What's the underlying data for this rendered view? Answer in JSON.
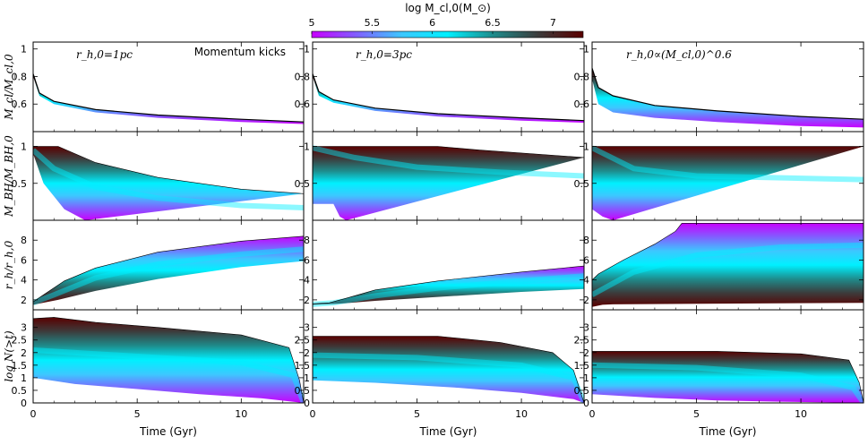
{
  "chart_data": {
    "type": "area",
    "colorbar": {
      "title": "log M_cl,0(M_⊙)",
      "ticks": [
        "5",
        "5.5",
        "6",
        "6.5",
        "7"
      ],
      "range": [
        5,
        7.25
      ],
      "colors": [
        "#c800ff",
        "#8060ff",
        "#3cc8ff",
        "#00f0ff",
        "#1e8c8c",
        "#3c3c3c",
        "#5a0000"
      ]
    },
    "columns": [
      {
        "label": "r_h,0=1pc",
        "note": "Momentum kicks",
        "xlabel": "Time (Gyr)"
      },
      {
        "label": "r_h,0=3pc",
        "note": "",
        "xlabel": "Time (Gyr)"
      },
      {
        "label": "r_h,0∝(M_cl,0)^0.6",
        "note": "",
        "xlabel": "Time (Gyr)"
      }
    ],
    "xlim": [
      0,
      13
    ],
    "xticks": [
      "0",
      "5",
      "10"
    ],
    "rows": [
      {
        "ylabel": "M_cl/M_cl,0",
        "ylim": [
          0.4,
          1.05
        ],
        "yticks": [
          "0.6",
          "0.8",
          "1"
        ],
        "ytick_values": [
          0.6,
          0.8,
          1
        ]
      },
      {
        "ylabel": "M_BH/M_BH,0",
        "ylim": [
          0,
          1.2
        ],
        "yticks": [
          "0.5",
          "1"
        ],
        "ytick_values": [
          0.5,
          1
        ]
      },
      {
        "ylabel": "r_h/r_h,0",
        "ylim": [
          1,
          10
        ],
        "yticks": [
          "2",
          "4",
          "6",
          "8"
        ],
        "ytick_values": [
          2,
          4,
          6,
          8
        ]
      },
      {
        "ylabel": "log N(>t)",
        "ylim": [
          0,
          3.7
        ],
        "yticks": [
          "0",
          "0.5",
          "1",
          "1.5",
          "2",
          "2.5",
          "3"
        ],
        "ytick_values": [
          0,
          0.5,
          1,
          1.5,
          2,
          2.5,
          3
        ]
      }
    ],
    "panels": [
      [
        {
          "shape": "mass",
          "top": [
            [
              0,
              0.82
            ],
            [
              0.3,
              0.68
            ],
            [
              1,
              0.62
            ],
            [
              3,
              0.56
            ],
            [
              6,
              0.52
            ],
            [
              10,
              0.49
            ],
            [
              13,
              0.47
            ]
          ],
          "bottom": [
            [
              0,
              0.8
            ],
            [
              0.3,
              0.66
            ],
            [
              1,
              0.6
            ],
            [
              3,
              0.54
            ],
            [
              6,
              0.5
            ],
            [
              10,
              0.47
            ],
            [
              13,
              0.455
            ]
          ]
        },
        {
          "shape": "band",
          "top": [
            [
              0,
              1
            ],
            [
              1.2,
              1
            ],
            [
              3,
              0.78
            ],
            [
              6,
              0.58
            ],
            [
              10,
              0.42
            ],
            [
              13,
              0.36
            ]
          ],
          "mid": [
            [
              0,
              0.95
            ],
            [
              1,
              0.7
            ],
            [
              3,
              0.45
            ],
            [
              6,
              0.3
            ],
            [
              10,
              0.2
            ],
            [
              13,
              0.17
            ]
          ],
          "bottom": [
            [
              0,
              0.9
            ],
            [
              0.5,
              0.5
            ],
            [
              1.5,
              0.15
            ],
            [
              2.5,
              0
            ]
          ]
        },
        {
          "shape": "band",
          "top": [
            [
              0,
              1.8
            ],
            [
              0.5,
              2.5
            ],
            [
              1.5,
              3.9
            ],
            [
              3,
              5.2
            ],
            [
              6,
              6.8
            ],
            [
              10,
              7.9
            ],
            [
              13,
              8.4
            ]
          ],
          "mid": [
            [
              0,
              1.7
            ],
            [
              1,
              2.5
            ],
            [
              3,
              4.2
            ],
            [
              6,
              5.6
            ],
            [
              10,
              6.6
            ],
            [
              13,
              7.1
            ]
          ],
          "bottom": [
            [
              0,
              1.5
            ],
            [
              1.2,
              2
            ],
            [
              3,
              2.9
            ],
            [
              6,
              4.1
            ],
            [
              10,
              5.3
            ],
            [
              13,
              5.9
            ]
          ]
        },
        {
          "shape": "band",
          "top": [
            [
              0,
              3.35
            ],
            [
              1,
              3.4
            ],
            [
              3,
              3.2
            ],
            [
              6,
              3.0
            ],
            [
              10,
              2.7
            ],
            [
              12.3,
              2.2
            ],
            [
              12.8,
              0.9
            ],
            [
              13,
              0
            ]
          ],
          "mid": [
            [
              0,
              2.1
            ],
            [
              3,
              1.95
            ],
            [
              6,
              1.8
            ],
            [
              10,
              1.6
            ],
            [
              12.5,
              1.1
            ],
            [
              13,
              0
            ]
          ],
          "bottom": [
            [
              0,
              1.0
            ],
            [
              2,
              0.75
            ],
            [
              5,
              0.55
            ],
            [
              8,
              0.35
            ],
            [
              11,
              0.18
            ],
            [
              13,
              0
            ]
          ]
        }
      ],
      [
        {
          "shape": "mass",
          "top": [
            [
              0,
              0.82
            ],
            [
              0.3,
              0.69
            ],
            [
              1,
              0.63
            ],
            [
              3,
              0.57
            ],
            [
              6,
              0.53
            ],
            [
              10,
              0.5
            ],
            [
              13,
              0.48
            ]
          ],
          "bottom": [
            [
              0,
              0.8
            ],
            [
              0.3,
              0.66
            ],
            [
              1,
              0.61
            ],
            [
              3,
              0.55
            ],
            [
              6,
              0.51
            ],
            [
              10,
              0.48
            ],
            [
              13,
              0.465
            ]
          ]
        },
        {
          "shape": "band",
          "top": [
            [
              0,
              1
            ],
            [
              6,
              1
            ],
            [
              8,
              0.95
            ],
            [
              13,
              0.85
            ]
          ],
          "mid": [
            [
              0,
              0.98
            ],
            [
              2,
              0.85
            ],
            [
              5,
              0.72
            ],
            [
              9,
              0.65
            ],
            [
              13,
              0.6
            ]
          ],
          "bottom": [
            [
              0,
              0.22
            ],
            [
              1,
              0.22
            ],
            [
              1.3,
              0.05
            ],
            [
              1.6,
              0
            ]
          ]
        },
        {
          "shape": "band",
          "top": [
            [
              0,
              1.6
            ],
            [
              0.8,
              1.7
            ],
            [
              1.5,
              2.1
            ],
            [
              3,
              3.0
            ],
            [
              6,
              3.9
            ],
            [
              10,
              4.8
            ],
            [
              13,
              5.4
            ]
          ],
          "mid": [
            [
              0,
              1.55
            ],
            [
              1,
              1.7
            ],
            [
              3,
              2.4
            ],
            [
              6,
              3.2
            ],
            [
              10,
              3.9
            ],
            [
              13,
              4.4
            ]
          ],
          "bottom": [
            [
              0,
              1.5
            ],
            [
              1.2,
              1.6
            ],
            [
              3,
              1.9
            ],
            [
              6,
              2.3
            ],
            [
              10,
              2.8
            ],
            [
              13,
              3.1
            ]
          ]
        },
        {
          "shape": "band",
          "top": [
            [
              0,
              2.65
            ],
            [
              6,
              2.65
            ],
            [
              9,
              2.4
            ],
            [
              11.5,
              2.0
            ],
            [
              12.5,
              1.3
            ],
            [
              13,
              0
            ]
          ],
          "mid": [
            [
              0,
              1.9
            ],
            [
              5,
              1.8
            ],
            [
              10,
              1.5
            ],
            [
              12.5,
              1.0
            ],
            [
              13,
              0
            ]
          ],
          "bottom": [
            [
              0,
              0.9
            ],
            [
              3,
              0.8
            ],
            [
              7,
              0.6
            ],
            [
              10,
              0.4
            ],
            [
              12.5,
              0.15
            ],
            [
              13,
              0
            ]
          ]
        }
      ],
      [
        {
          "shape": "mass",
          "top": [
            [
              0,
              0.86
            ],
            [
              0.3,
              0.72
            ],
            [
              1,
              0.66
            ],
            [
              3,
              0.59
            ],
            [
              6,
              0.55
            ],
            [
              10,
              0.51
            ],
            [
              13,
              0.49
            ]
          ],
          "bottom": [
            [
              0,
              0.78
            ],
            [
              0.3,
              0.6
            ],
            [
              1,
              0.54
            ],
            [
              3,
              0.5
            ],
            [
              6,
              0.47
            ],
            [
              10,
              0.44
            ],
            [
              13,
              0.43
            ]
          ]
        },
        {
          "shape": "band",
          "top": [
            [
              0,
              1
            ],
            [
              13,
              1
            ]
          ],
          "mid": [
            [
              0,
              0.98
            ],
            [
              2,
              0.7
            ],
            [
              5,
              0.6
            ],
            [
              13,
              0.55
            ]
          ],
          "bottom": [
            [
              0,
              0.15
            ],
            [
              0.5,
              0.05
            ],
            [
              1,
              0
            ]
          ]
        },
        {
          "shape": "band",
          "top": [
            [
              0,
              4
            ],
            [
              0.3,
              4.6
            ],
            [
              1.5,
              6
            ],
            [
              3,
              7.6
            ],
            [
              4,
              8.9
            ],
            [
              4.3,
              9.7
            ],
            [
              13,
              9.7
            ]
          ],
          "mid": [
            [
              0,
              2.5
            ],
            [
              2,
              4.8
            ],
            [
              5,
              6.5
            ],
            [
              9,
              7.3
            ],
            [
              13,
              7.5
            ]
          ],
          "bottom": [
            [
              0,
              1.3
            ],
            [
              0.5,
              1.5
            ],
            [
              1,
              1.55
            ],
            [
              13,
              1.7
            ]
          ]
        },
        {
          "shape": "band",
          "top": [
            [
              0,
              2.05
            ],
            [
              6,
              2.05
            ],
            [
              10,
              1.95
            ],
            [
              12.3,
              1.7
            ],
            [
              12.8,
              0.8
            ],
            [
              13,
              0
            ]
          ],
          "mid": [
            [
              0,
              1.5
            ],
            [
              5,
              1.4
            ],
            [
              10,
              1.1
            ],
            [
              12.5,
              0.6
            ],
            [
              13,
              0
            ]
          ],
          "bottom": [
            [
              0,
              0.35
            ],
            [
              3,
              0.2
            ],
            [
              6,
              0.1
            ],
            [
              9,
              0.05
            ],
            [
              13,
              0
            ]
          ]
        }
      ]
    ]
  }
}
